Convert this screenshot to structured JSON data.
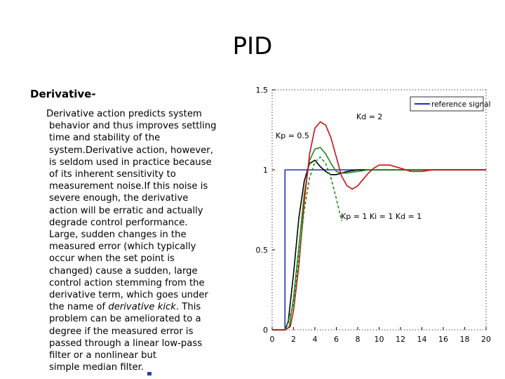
{
  "title": "PID",
  "heading": "Derivative-",
  "paragraph": {
    "line1": "Derivative action predicts system",
    "line2": "behavior and thus improves settling",
    "line3": "time and stability of the",
    "line4": "system.Derivative action, however,",
    "line5": "is seldom used in practice because",
    "line6": "of its inherent sensitivity to",
    "line7": "measurement noise.If this noise is",
    "line8": "severe enough, the derivative",
    "line9": "action will be erratic and actually",
    "line10": "degrade control performance.",
    "line11": "Large, sudden changes in the",
    "line12": "measured error (which typically",
    "line13": "occur when the set point is",
    "line14": "changed) cause a sudden, large",
    "line15": "control action stemming from the",
    "line16": "derivative term, which goes under",
    "line17_pre": "the name of ",
    "line17_em": "derivative kick",
    "line17_post": ". This",
    "line18": "problem can be ameliorated to a",
    "line19": "degree if the measured error is",
    "line20": "passed through a linear low-pass",
    "line21": "filter or a nonlinear but",
    "line22": "simple median filter."
  },
  "chart_data": {
    "type": "line",
    "title": "",
    "xlabel": "",
    "ylabel": "",
    "xlim": [
      0,
      20
    ],
    "ylim": [
      0,
      1.5
    ],
    "x_ticks": [
      "0",
      "2",
      "4",
      "6",
      "8",
      "10",
      "12",
      "14",
      "16",
      "18",
      "20"
    ],
    "y_ticks": [
      "0",
      "0.5",
      "1",
      "1.5"
    ],
    "legend": {
      "label": "reference signal",
      "position": "top-right"
    },
    "annotations": [
      "Kd = 2",
      "Kp = 0.5",
      "Kp = 1 Ki = 1 Kd = 1"
    ],
    "series": [
      {
        "name": "reference signal",
        "color": "#1f2fbf",
        "dashed": false,
        "x": [
          0,
          1.2,
          1.2,
          20
        ],
        "y": [
          0,
          0,
          1,
          1
        ]
      },
      {
        "color": "#000000",
        "dashed": false,
        "x": [
          0,
          1.2,
          1.5,
          2,
          2.5,
          3,
          3.5,
          4,
          4.5,
          5,
          5.5,
          6,
          7,
          8,
          9,
          10,
          12,
          14,
          16,
          18,
          20
        ],
        "y": [
          0,
          0,
          0.05,
          0.35,
          0.7,
          0.93,
          1.04,
          1.06,
          1.02,
          0.99,
          0.97,
          0.97,
          0.99,
          1.0,
          1.0,
          1.0,
          1.0,
          1.0,
          1.0,
          1.0,
          1.0
        ]
      },
      {
        "color": "#1a8c1a",
        "dashed": false,
        "x": [
          0,
          1.2,
          1.6,
          2,
          2.5,
          3,
          3.5,
          4,
          4.5,
          5,
          5.5,
          6,
          6.5,
          7,
          8,
          9,
          10,
          12,
          14,
          16,
          18,
          20
        ],
        "y": [
          0,
          0,
          0.02,
          0.2,
          0.52,
          0.85,
          1.06,
          1.13,
          1.14,
          1.1,
          1.04,
          0.99,
          0.98,
          0.98,
          0.99,
          1.0,
          1.0,
          1.0,
          1.0,
          1.0,
          1.0,
          1.0
        ]
      },
      {
        "color": "#d01010",
        "dashed": false,
        "x": [
          0,
          1.2,
          1.7,
          2,
          2.5,
          3,
          3.5,
          4,
          4.5,
          5,
          5.5,
          6,
          6.5,
          7,
          7.5,
          8,
          8.5,
          9,
          9.5,
          10,
          11,
          12,
          13,
          14,
          15,
          16,
          17,
          18,
          20
        ],
        "y": [
          0,
          0,
          0.02,
          0.12,
          0.4,
          0.8,
          1.1,
          1.26,
          1.3,
          1.28,
          1.2,
          1.08,
          0.96,
          0.9,
          0.88,
          0.9,
          0.94,
          0.98,
          1.01,
          1.03,
          1.03,
          1.01,
          0.99,
          0.99,
          1.0,
          1.0,
          1.0,
          1.0,
          1.0
        ]
      },
      {
        "color": "#1a8c1a",
        "dashed": true,
        "x": [
          1.2,
          2,
          2.5,
          3,
          3.5,
          4,
          4.5,
          5,
          5.5,
          6,
          6.5
        ],
        "y": [
          0,
          0.15,
          0.45,
          0.75,
          0.95,
          1.05,
          1.08,
          1.04,
          0.95,
          0.82,
          0.68
        ]
      }
    ]
  }
}
